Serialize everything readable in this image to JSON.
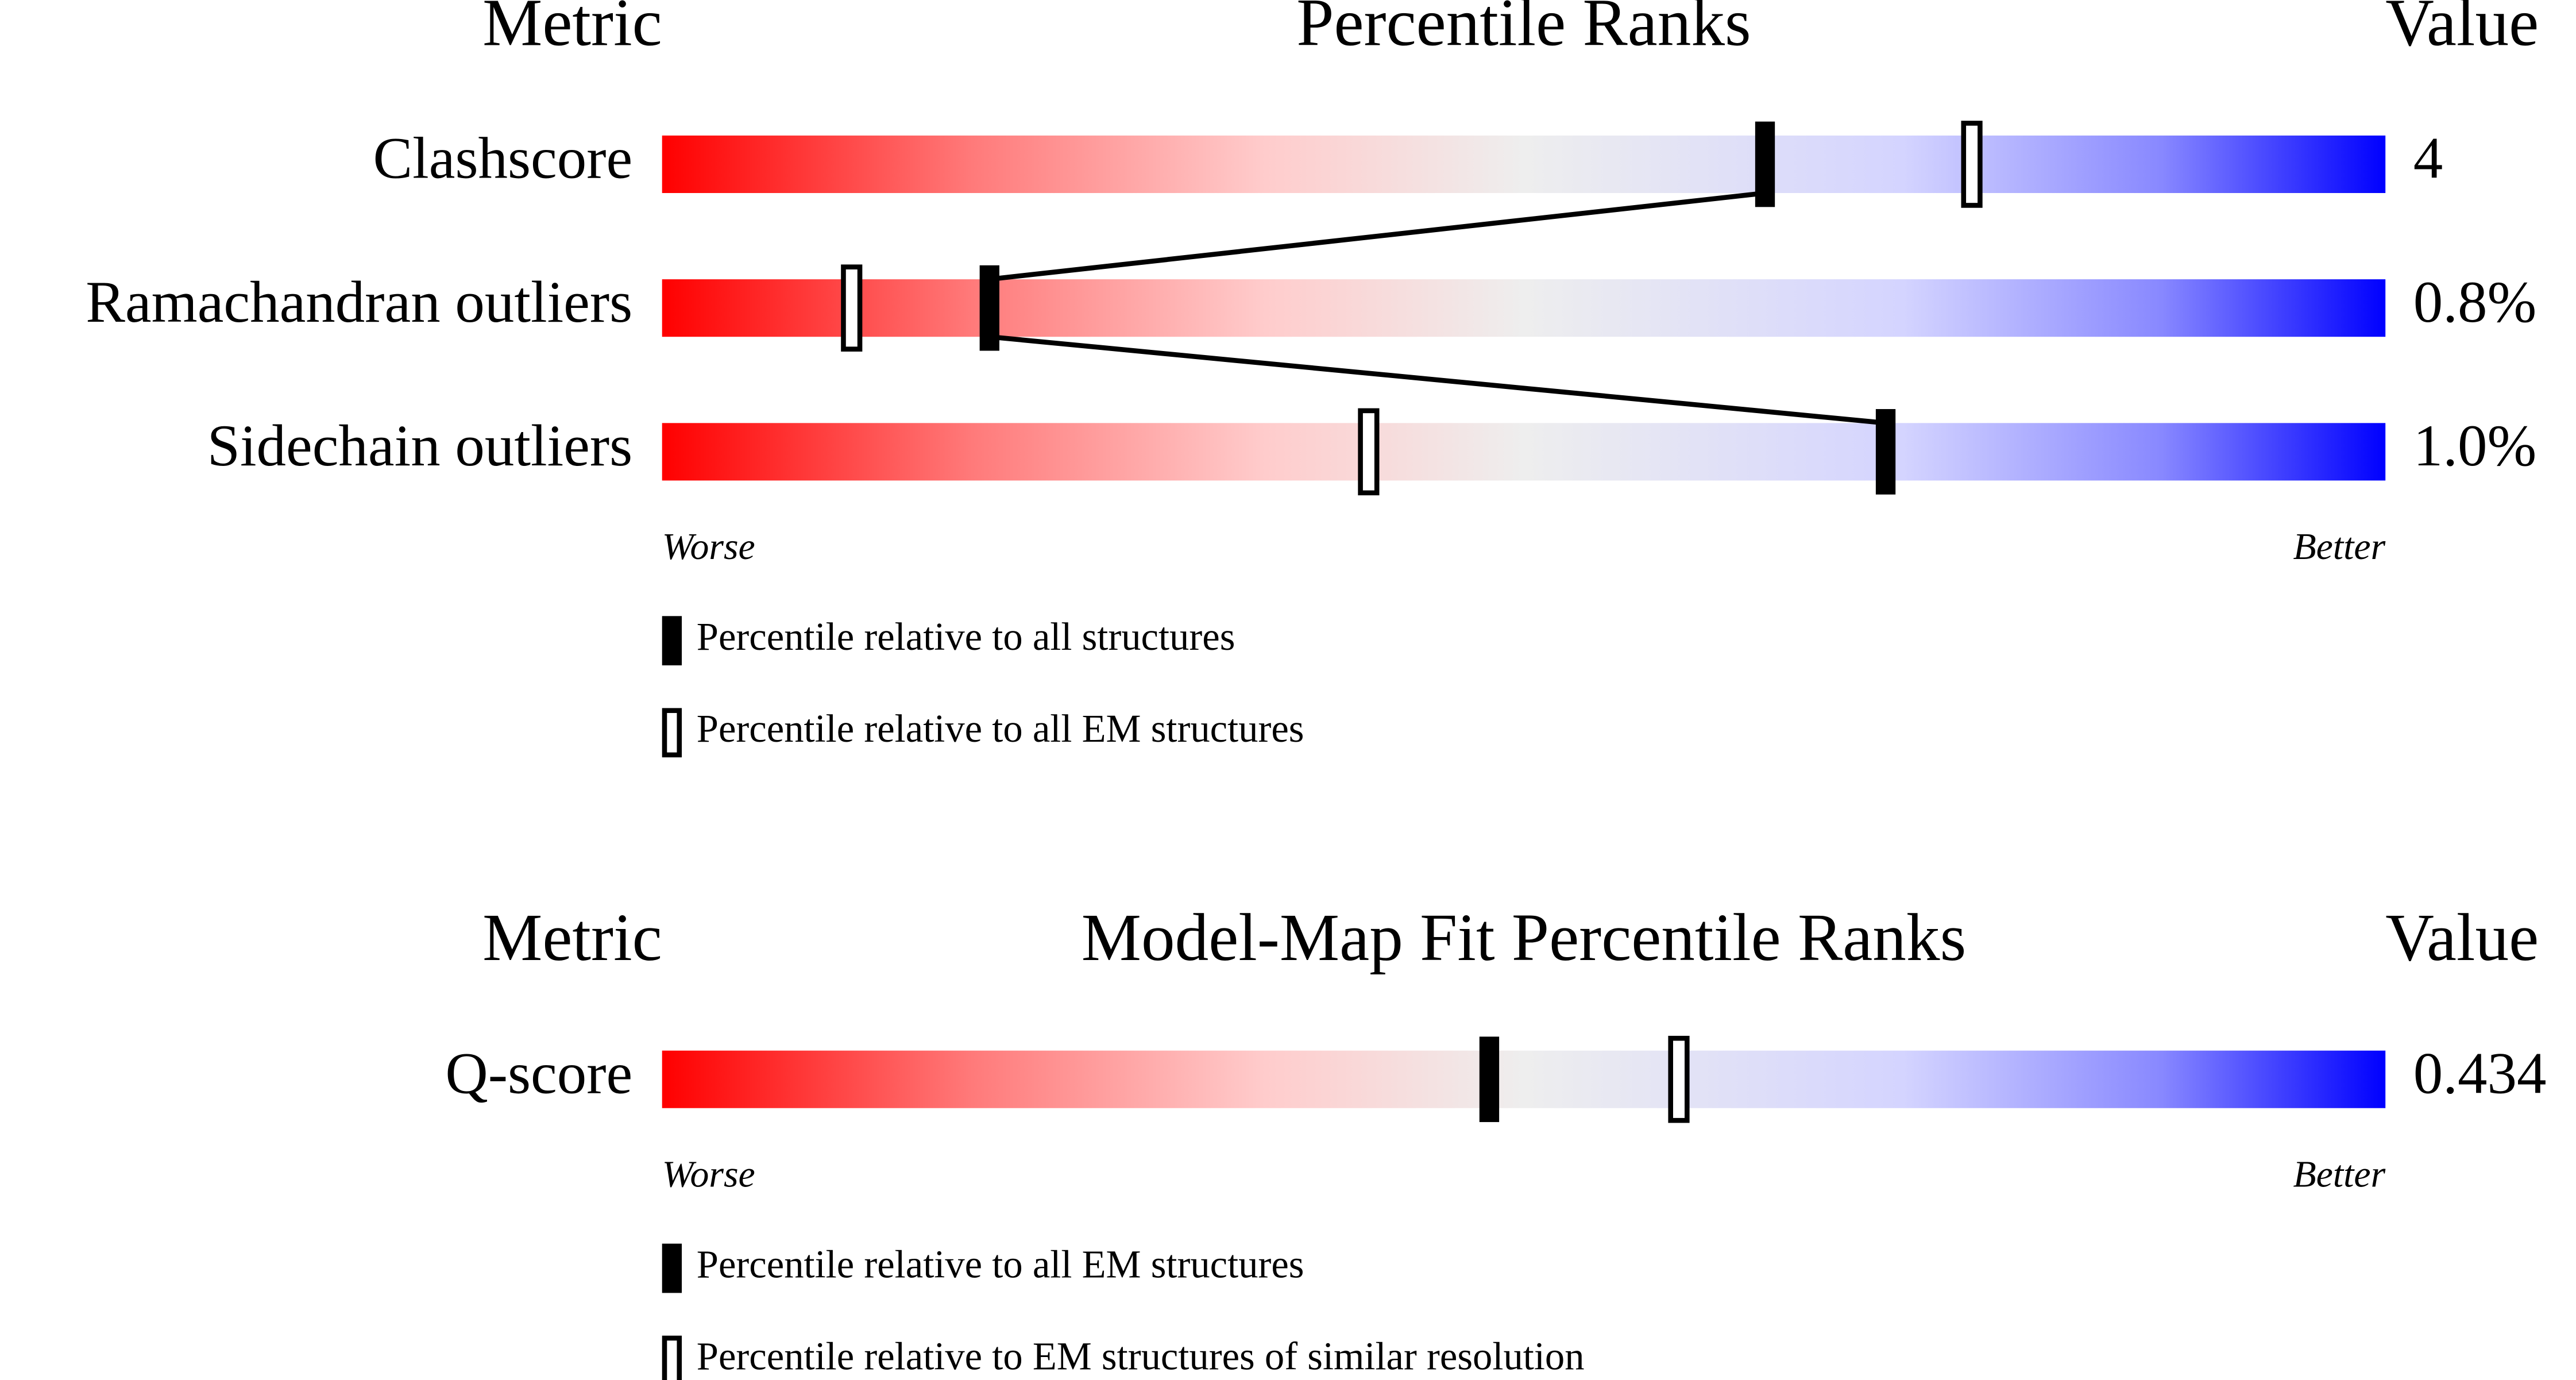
{
  "chart_data": [
    {
      "type": "percentile",
      "headers": {
        "metric": "Metric",
        "title": "Percentile Ranks",
        "value": "Value"
      },
      "categories": [
        "Clashscore",
        "Ramachandran outliers",
        "Sidechain outliers"
      ],
      "metric_values": [
        "4",
        "0.8%",
        "1.0%"
      ],
      "series": [
        {
          "name": "Percentile relative to all structures",
          "marker": "filled",
          "color": "#000000",
          "values": [
            64,
            19,
            71
          ]
        },
        {
          "name": "Percentile relative to all EM structures",
          "marker": "open",
          "color": "#000000",
          "values": [
            76,
            11,
            41
          ]
        }
      ],
      "xlim": [
        0,
        100
      ],
      "axis_labels": {
        "left": "Worse",
        "right": "Better"
      },
      "connect_markers": true
    },
    {
      "type": "percentile",
      "headers": {
        "metric": "Metric",
        "title": "Model-Map Fit Percentile Ranks",
        "value": "Value"
      },
      "categories": [
        "Q-score"
      ],
      "metric_values": [
        "0.434"
      ],
      "series": [
        {
          "name": "Percentile relative to all EM structures",
          "marker": "filled",
          "color": "#000000",
          "values": [
            48
          ]
        },
        {
          "name": "Percentile relative to EM structures of similar resolution",
          "marker": "open",
          "color": "#000000",
          "values": [
            59
          ]
        }
      ],
      "xlim": [
        0,
        100
      ],
      "axis_labels": {
        "left": "Worse",
        "right": "Better"
      },
      "connect_markers": true
    }
  ]
}
